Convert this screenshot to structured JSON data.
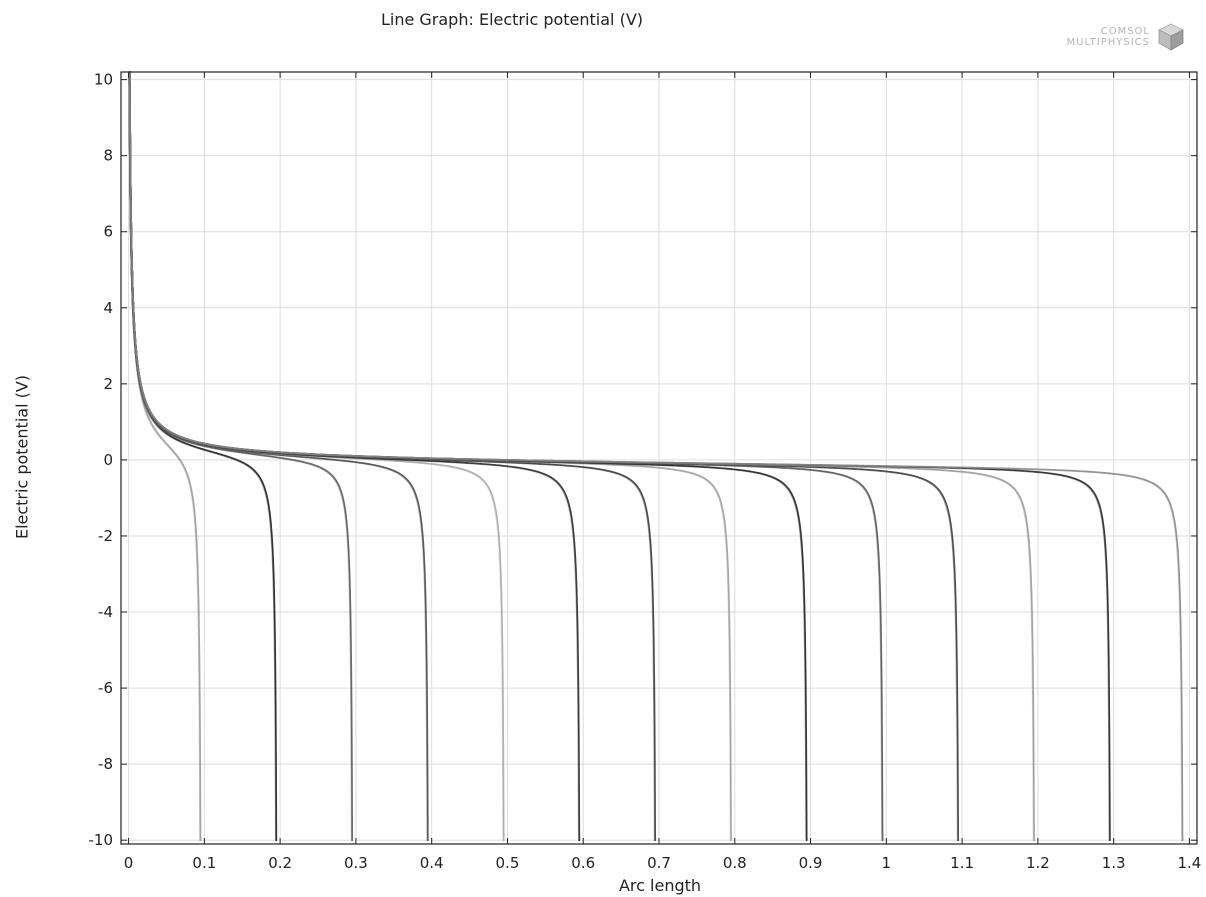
{
  "chart_data": {
    "type": "line",
    "title": "Line Graph: Electric potential (V)",
    "xlabel": "Arc length",
    "ylabel": "Electric potential (V)",
    "xlim": [
      -0.01,
      1.41
    ],
    "ylim": [
      -10.1,
      10.2
    ],
    "xticks": [
      0,
      0.1,
      0.2,
      0.3,
      0.4,
      0.5,
      0.6,
      0.7,
      0.8,
      0.9,
      1,
      1.1,
      1.2,
      1.3,
      1.4
    ],
    "xtick_labels": [
      "0",
      "0.1",
      "0.2",
      "0.3",
      "0.4",
      "0.5",
      "0.6",
      "0.7",
      "0.8",
      "0.9",
      "1",
      "1.1",
      "1.2",
      "1.3",
      "1.4"
    ],
    "yticks": [
      -10,
      -8,
      -6,
      -4,
      -2,
      0,
      2,
      4,
      6,
      8,
      10
    ],
    "ytick_labels": [
      "-10",
      "-8",
      "-6",
      "-4",
      "-2",
      "0",
      "2",
      "4",
      "6",
      "8",
      "10"
    ],
    "grid": true,
    "series": [
      {
        "end_length": 0.096,
        "gray": "#9a9a9a"
      },
      {
        "end_length": 0.196,
        "gray": "#1e1e1e"
      },
      {
        "end_length": 0.296,
        "gray": "#5a5a5a"
      },
      {
        "end_length": 0.396,
        "gray": "#4a4a4a"
      },
      {
        "end_length": 0.496,
        "gray": "#a8a8a8"
      },
      {
        "end_length": 0.596,
        "gray": "#2a2a2a"
      },
      {
        "end_length": 0.696,
        "gray": "#3a3a3a"
      },
      {
        "end_length": 0.796,
        "gray": "#9e9e9e"
      },
      {
        "end_length": 0.896,
        "gray": "#222222"
      },
      {
        "end_length": 0.996,
        "gray": "#555555"
      },
      {
        "end_length": 1.096,
        "gray": "#3c3c3c"
      },
      {
        "end_length": 1.196,
        "gray": "#9a9a9a"
      },
      {
        "end_length": 1.296,
        "gray": "#262626"
      },
      {
        "end_length": 1.392,
        "gray": "#8a8a8a"
      }
    ]
  },
  "logo": {
    "line1": "COMSOL",
    "line2": "MULTIPHYSICS"
  }
}
